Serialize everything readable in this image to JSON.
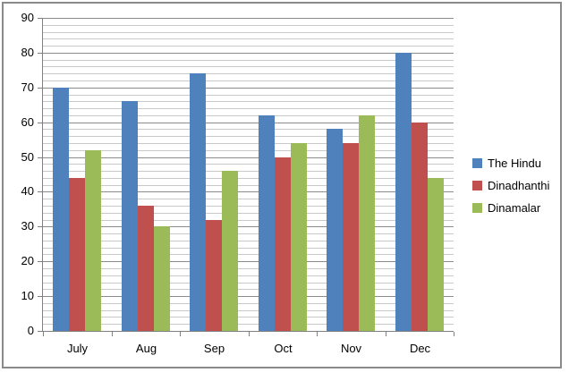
{
  "chart_data": {
    "type": "bar",
    "title": "",
    "xlabel": "",
    "ylabel": "",
    "categories": [
      "July",
      "Aug",
      "Sep",
      "Oct",
      "Nov",
      "Dec"
    ],
    "series": [
      {
        "name": "The Hindu",
        "color": "#4F81BD",
        "values": [
          70,
          66,
          74,
          62,
          58,
          80
        ]
      },
      {
        "name": "Dinadhanthi",
        "color": "#C0504D",
        "values": [
          44,
          36,
          32,
          50,
          54,
          60
        ]
      },
      {
        "name": "Dinamalar",
        "color": "#9BBB59",
        "values": [
          52,
          30,
          46,
          54,
          62,
          44
        ]
      }
    ],
    "ylim": [
      0,
      90
    ],
    "y_major_step": 10,
    "y_minor_step": 2,
    "y_tick_labels": [
      "0",
      "10",
      "20",
      "30",
      "40",
      "50",
      "60",
      "70",
      "80",
      "90"
    ],
    "grid": "horizontal major+minor",
    "legend_position": "right",
    "plot_background": "#FFFFFF",
    "frame_border_color": "#8A8A8A",
    "major_gridline_color": "#8C8C8C",
    "minor_gridline_color": "#C9C9C9",
    "axis_color": "#7F7F7F",
    "text_color": "#000000"
  }
}
